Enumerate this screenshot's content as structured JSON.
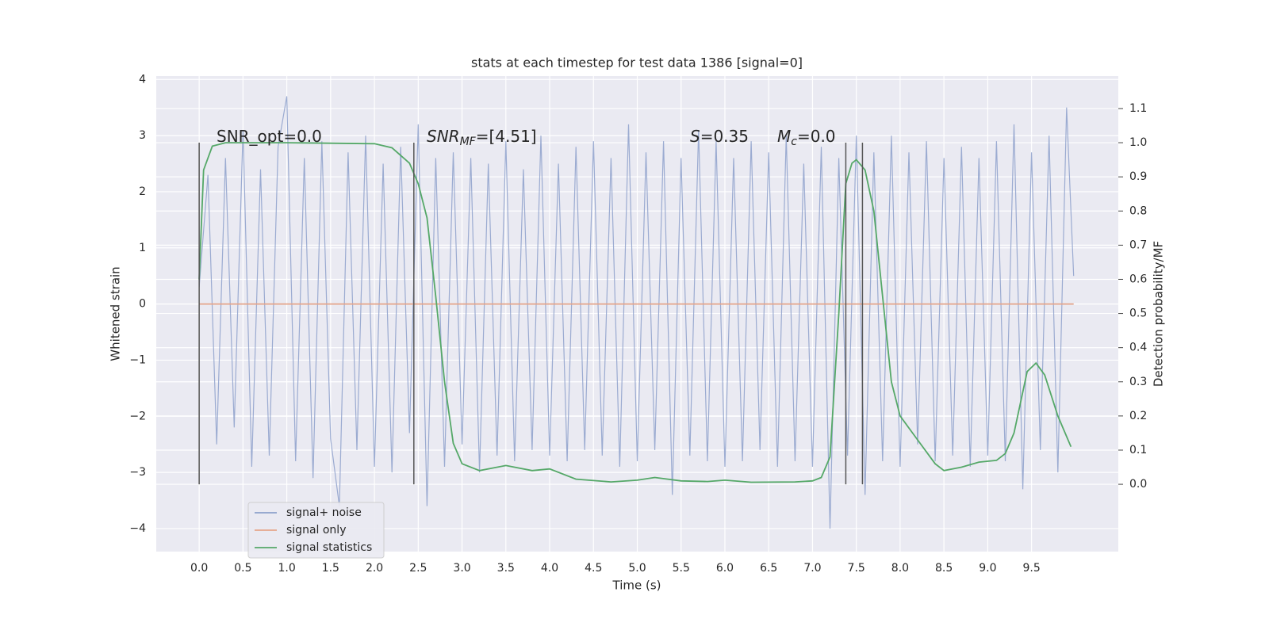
{
  "chart_data": {
    "type": "line",
    "title": "stats at each timestep for test data 1386 [signal=0]",
    "xlabel": "Time (s)",
    "ylabel": "Whitened strain",
    "y2label": "Detection probability/MF",
    "grid": true,
    "legend": "lower left",
    "xlim": [
      -0.49,
      10.49
    ],
    "ylim": [
      -4.41,
      4.06
    ],
    "y2lim": [
      -0.197,
      1.195
    ],
    "xticks": [
      {
        "value": 0,
        "label": "0.0"
      },
      {
        "value": 0.5,
        "label": "0.5"
      },
      {
        "value": 1,
        "label": "1.0"
      },
      {
        "value": 1.5,
        "label": "1.5"
      },
      {
        "value": 2,
        "label": "2.0"
      },
      {
        "value": 2.5,
        "label": "2.5"
      },
      {
        "value": 3,
        "label": "3.0"
      },
      {
        "value": 3.5,
        "label": "3.5"
      },
      {
        "value": 4,
        "label": "4.0"
      },
      {
        "value": 4.5,
        "label": "4.5"
      },
      {
        "value": 5,
        "label": "5.0"
      },
      {
        "value": 5.5,
        "label": "5.5"
      },
      {
        "value": 6,
        "label": "6.0"
      },
      {
        "value": 6.5,
        "label": "6.5"
      },
      {
        "value": 7,
        "label": "7.0"
      },
      {
        "value": 7.5,
        "label": "7.5"
      },
      {
        "value": 8,
        "label": "8.0"
      },
      {
        "value": 8.5,
        "label": "8.5"
      },
      {
        "value": 9,
        "label": "9.0"
      },
      {
        "value": 9.5,
        "label": "9.5"
      }
    ],
    "yticks": [
      {
        "value": -4,
        "label": "−4"
      },
      {
        "value": -3,
        "label": "−3"
      },
      {
        "value": -2,
        "label": "−2"
      },
      {
        "value": -1,
        "label": "−1"
      },
      0,
      1,
      2,
      3,
      4
    ],
    "y2ticks": [
      {
        "value": 0,
        "label": "0.0"
      },
      {
        "value": 0.1,
        "label": "0.1"
      },
      {
        "value": 0.2,
        "label": "0.2"
      },
      {
        "value": 0.3,
        "label": "0.3"
      },
      {
        "value": 0.4,
        "label": "0.4"
      },
      {
        "value": 0.5,
        "label": "0.5"
      },
      {
        "value": 0.6,
        "label": "0.6"
      },
      {
        "value": 0.7,
        "label": "0.7"
      },
      {
        "value": 0.8,
        "label": "0.8"
      },
      {
        "value": 0.9,
        "label": "0.9"
      },
      {
        "value": 1,
        "label": "1.0"
      },
      {
        "value": 1.1,
        "label": "1.1"
      }
    ],
    "series": [
      {
        "name": "signal+ noise",
        "color": "#8da0cb",
        "x": [
          0,
          0.1,
          0.2,
          0.3,
          0.4,
          0.5,
          0.6,
          0.7,
          0.8,
          0.9,
          1,
          1.1,
          1.2,
          1.3,
          1.4,
          1.5,
          1.6,
          1.7,
          1.8,
          1.9,
          2,
          2.1,
          2.2,
          2.3,
          2.4,
          2.5,
          2.6,
          2.7,
          2.8,
          2.9,
          3,
          3.1,
          3.2,
          3.3,
          3.4,
          3.5,
          3.6,
          3.7,
          3.8,
          3.9,
          4,
          4.1,
          4.2,
          4.3,
          4.4,
          4.5,
          4.6,
          4.7,
          4.8,
          4.9,
          5,
          5.1,
          5.2,
          5.3,
          5.4,
          5.5,
          5.6,
          5.7,
          5.8,
          5.9,
          6,
          6.1,
          6.2,
          6.3,
          6.4,
          6.5,
          6.6,
          6.7,
          6.8,
          6.9,
          7,
          7.1,
          7.2,
          7.3,
          7.4,
          7.5,
          7.6,
          7.7,
          7.8,
          7.9,
          8,
          8.1,
          8.2,
          8.3,
          8.4,
          8.5,
          8.6,
          8.7,
          8.8,
          8.9,
          9,
          9.1,
          9.2,
          9.3,
          9.4,
          9.5,
          9.6,
          9.7,
          9.8,
          9.9,
          9.98
        ],
        "values": [
          0.3,
          2.3,
          -2.5,
          2.6,
          -2.2,
          3.1,
          -2.9,
          2.4,
          -2.7,
          2.8,
          3.7,
          -2.8,
          2.6,
          -3.1,
          2.9,
          -2.4,
          -3.6,
          2.7,
          -2.6,
          3.0,
          -2.9,
          2.5,
          -3.0,
          2.8,
          -2.3,
          3.2,
          -3.6,
          2.6,
          -2.9,
          2.7,
          -2.5,
          2.6,
          -3.0,
          2.5,
          -2.7,
          2.9,
          -2.8,
          2.4,
          -2.6,
          3.0,
          -2.7,
          2.5,
          -2.8,
          2.8,
          -2.6,
          2.9,
          -2.7,
          2.6,
          -2.9,
          3.2,
          -2.8,
          2.7,
          -2.6,
          2.9,
          -3.4,
          2.6,
          -2.7,
          3.1,
          -2.8,
          2.9,
          -2.9,
          2.6,
          -2.8,
          2.9,
          -2.6,
          2.7,
          -2.9,
          3.0,
          -2.8,
          2.5,
          -2.9,
          2.8,
          -4.0,
          2.6,
          -2.7,
          3.0,
          -3.4,
          2.7,
          -2.8,
          3.0,
          -2.9,
          2.7,
          -2.5,
          2.9,
          -2.8,
          2.6,
          -2.7,
          2.8,
          -2.9,
          2.6,
          -2.7,
          2.9,
          -2.8,
          3.2,
          -3.3,
          2.7,
          -2.6,
          3.0,
          -3.0,
          3.5,
          0.5
        ]
      },
      {
        "name": "signal only",
        "color": "#e5a58a",
        "x": [
          0,
          9.98
        ],
        "values": [
          0,
          0
        ]
      },
      {
        "name": "signal statistics",
        "color": "#55a868",
        "axis": "y2",
        "x": [
          0,
          0.05,
          0.15,
          0.3,
          1,
          2,
          2.2,
          2.4,
          2.5,
          2.6,
          2.7,
          2.8,
          2.9,
          3,
          3.2,
          3.5,
          3.8,
          4,
          4.3,
          4.7,
          5,
          5.2,
          5.5,
          5.8,
          6,
          6.3,
          6.8,
          7,
          7.1,
          7.2,
          7.3,
          7.38,
          7.45,
          7.5,
          7.6,
          7.7,
          7.8,
          7.9,
          8,
          8.2,
          8.4,
          8.5,
          8.7,
          8.9,
          9.1,
          9.2,
          9.3,
          9.45,
          9.55,
          9.65,
          9.8,
          9.95
        ],
        "values": [
          0.6,
          0.92,
          0.99,
          1.0,
          1.0,
          0.997,
          0.985,
          0.94,
          0.88,
          0.78,
          0.55,
          0.3,
          0.12,
          0.06,
          0.04,
          0.055,
          0.04,
          0.045,
          0.015,
          0.007,
          0.012,
          0.02,
          0.01,
          0.008,
          0.012,
          0.006,
          0.007,
          0.01,
          0.02,
          0.08,
          0.5,
          0.88,
          0.94,
          0.95,
          0.92,
          0.8,
          0.55,
          0.3,
          0.2,
          0.13,
          0.06,
          0.04,
          0.05,
          0.065,
          0.07,
          0.09,
          0.15,
          0.33,
          0.355,
          0.32,
          0.2,
          0.11
        ]
      }
    ],
    "vlines": {
      "x": [
        0,
        2.45,
        7.38,
        7.57
      ],
      "y2range": [
        0,
        1
      ],
      "color": "#555555"
    },
    "annotations": [
      {
        "text": "SNR_opt=0.0"
      },
      {
        "symbol": "SNR",
        "subscript": "MF",
        "text": "=[4.51]"
      },
      {
        "symbol": "S",
        "text": "=0.35"
      },
      {
        "symbol": "M",
        "subscript": "c",
        "text": "=0.0"
      }
    ]
  }
}
